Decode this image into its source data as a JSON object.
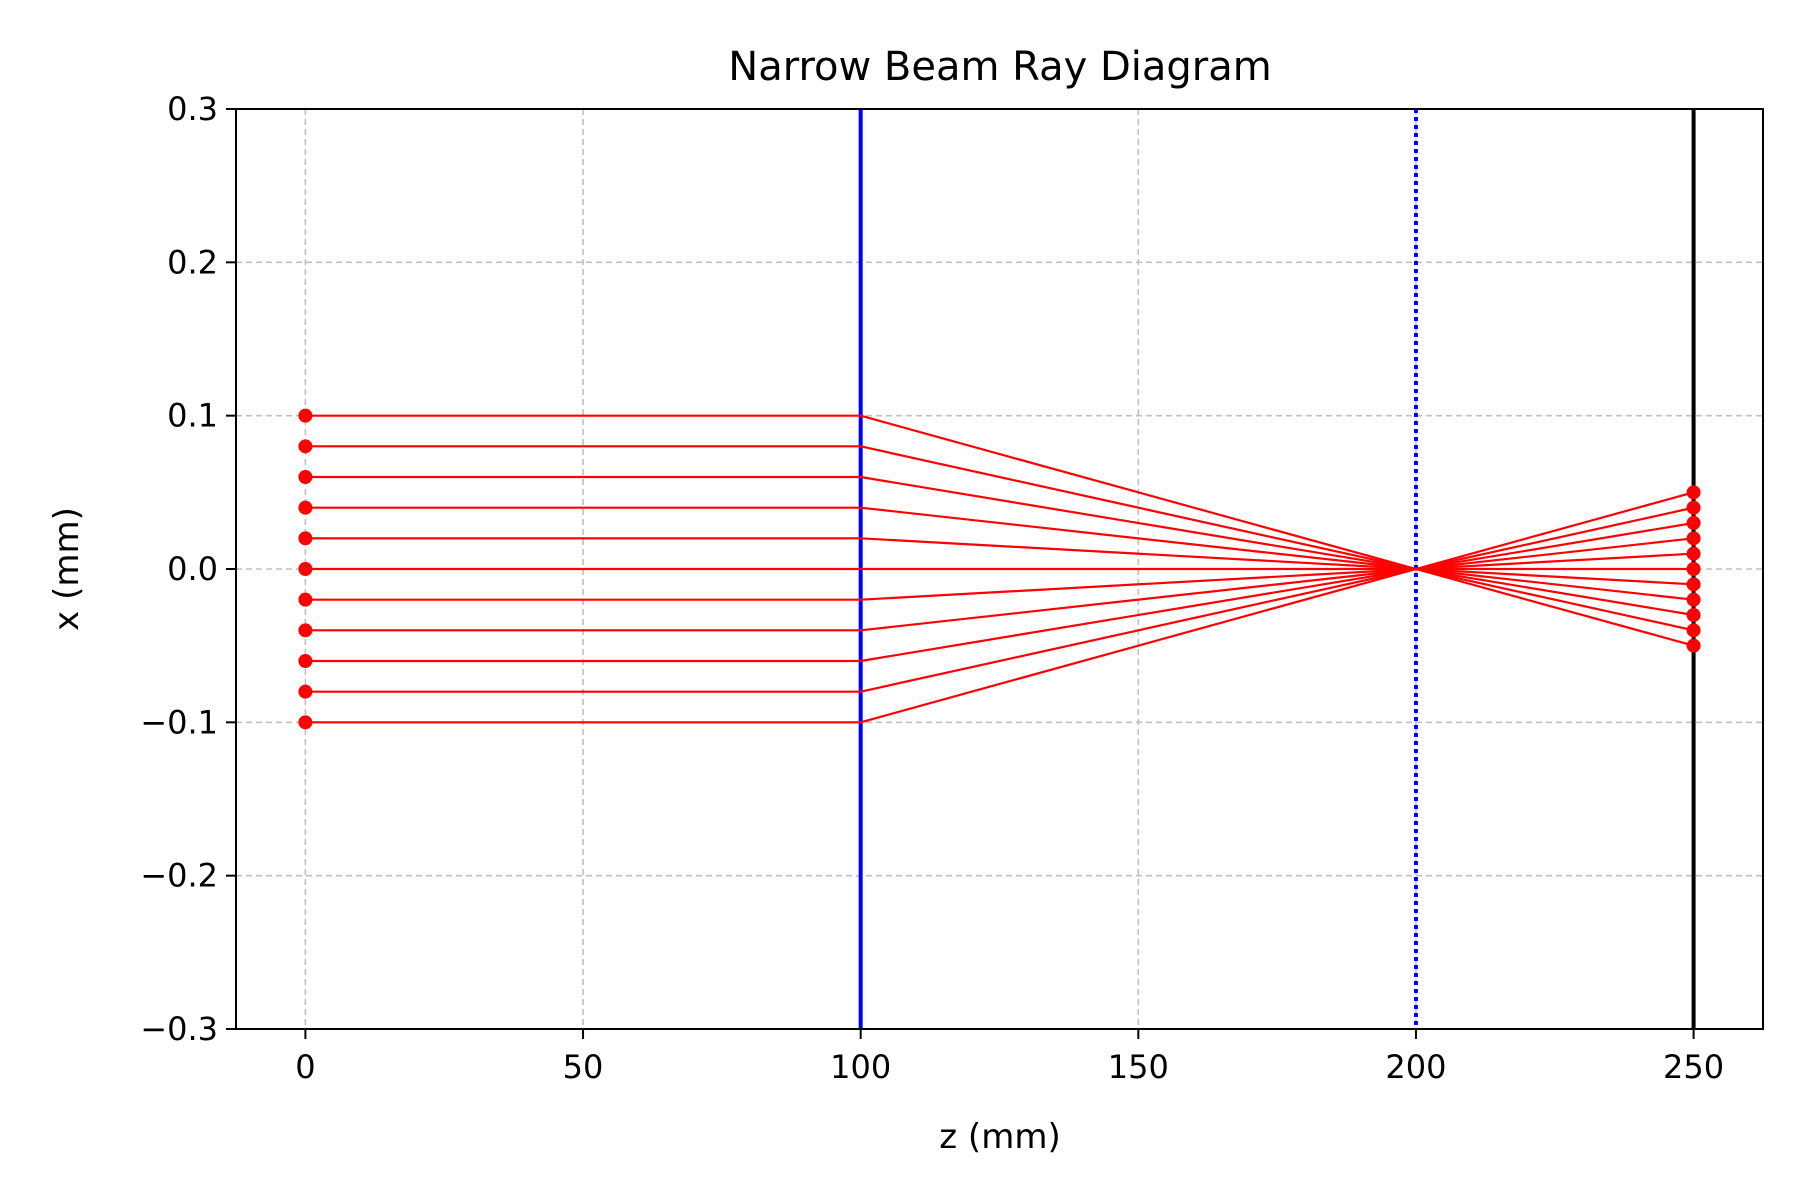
{
  "chart_data": {
    "type": "line",
    "title": "Narrow Beam Ray Diagram",
    "xlabel": "z (mm)",
    "ylabel": "x (mm)",
    "xlim": [
      -12.5,
      262.5
    ],
    "ylim": [
      -0.3,
      0.3
    ],
    "xticks": [
      0,
      50,
      100,
      150,
      200,
      250
    ],
    "xtick_labels": [
      "0",
      "50",
      "100",
      "150",
      "200",
      "250"
    ],
    "yticks": [
      -0.3,
      -0.2,
      -0.1,
      0.0,
      0.1,
      0.2,
      0.3
    ],
    "ytick_labels": [
      "−0.3",
      "−0.2",
      "−0.1",
      "0.0",
      "0.1",
      "0.2",
      "0.3"
    ],
    "grid": true,
    "legend": "none",
    "colors": {
      "rays": "#ff0000",
      "lens": "#0000ff",
      "focal_plane": "#0000ff",
      "screen": "#000000",
      "grid": "#bfbfbf"
    },
    "vertical_lines": [
      {
        "z": 100,
        "style": "solid",
        "color": "#0000ff"
      },
      {
        "z": 200,
        "style": "dotted",
        "color": "#0000ff"
      },
      {
        "z": 250,
        "style": "solid",
        "color": "#000000"
      }
    ],
    "rays": [
      {
        "z": [
          0,
          100,
          250
        ],
        "x": [
          0.1,
          0.1,
          -0.05
        ]
      },
      {
        "z": [
          0,
          100,
          250
        ],
        "x": [
          0.08,
          0.08,
          -0.04
        ]
      },
      {
        "z": [
          0,
          100,
          250
        ],
        "x": [
          0.06,
          0.06,
          -0.03
        ]
      },
      {
        "z": [
          0,
          100,
          250
        ],
        "x": [
          0.04,
          0.04,
          -0.02
        ]
      },
      {
        "z": [
          0,
          100,
          250
        ],
        "x": [
          0.02,
          0.02,
          -0.01
        ]
      },
      {
        "z": [
          0,
          100,
          250
        ],
        "x": [
          0.0,
          0.0,
          0.0
        ]
      },
      {
        "z": [
          0,
          100,
          250
        ],
        "x": [
          -0.02,
          -0.02,
          0.01
        ]
      },
      {
        "z": [
          0,
          100,
          250
        ],
        "x": [
          -0.04,
          -0.04,
          0.02
        ]
      },
      {
        "z": [
          0,
          100,
          250
        ],
        "x": [
          -0.06,
          -0.06,
          0.03
        ]
      },
      {
        "z": [
          0,
          100,
          250
        ],
        "x": [
          -0.08,
          -0.08,
          0.04
        ]
      },
      {
        "z": [
          0,
          100,
          250
        ],
        "x": [
          -0.1,
          -0.1,
          0.05
        ]
      }
    ]
  }
}
